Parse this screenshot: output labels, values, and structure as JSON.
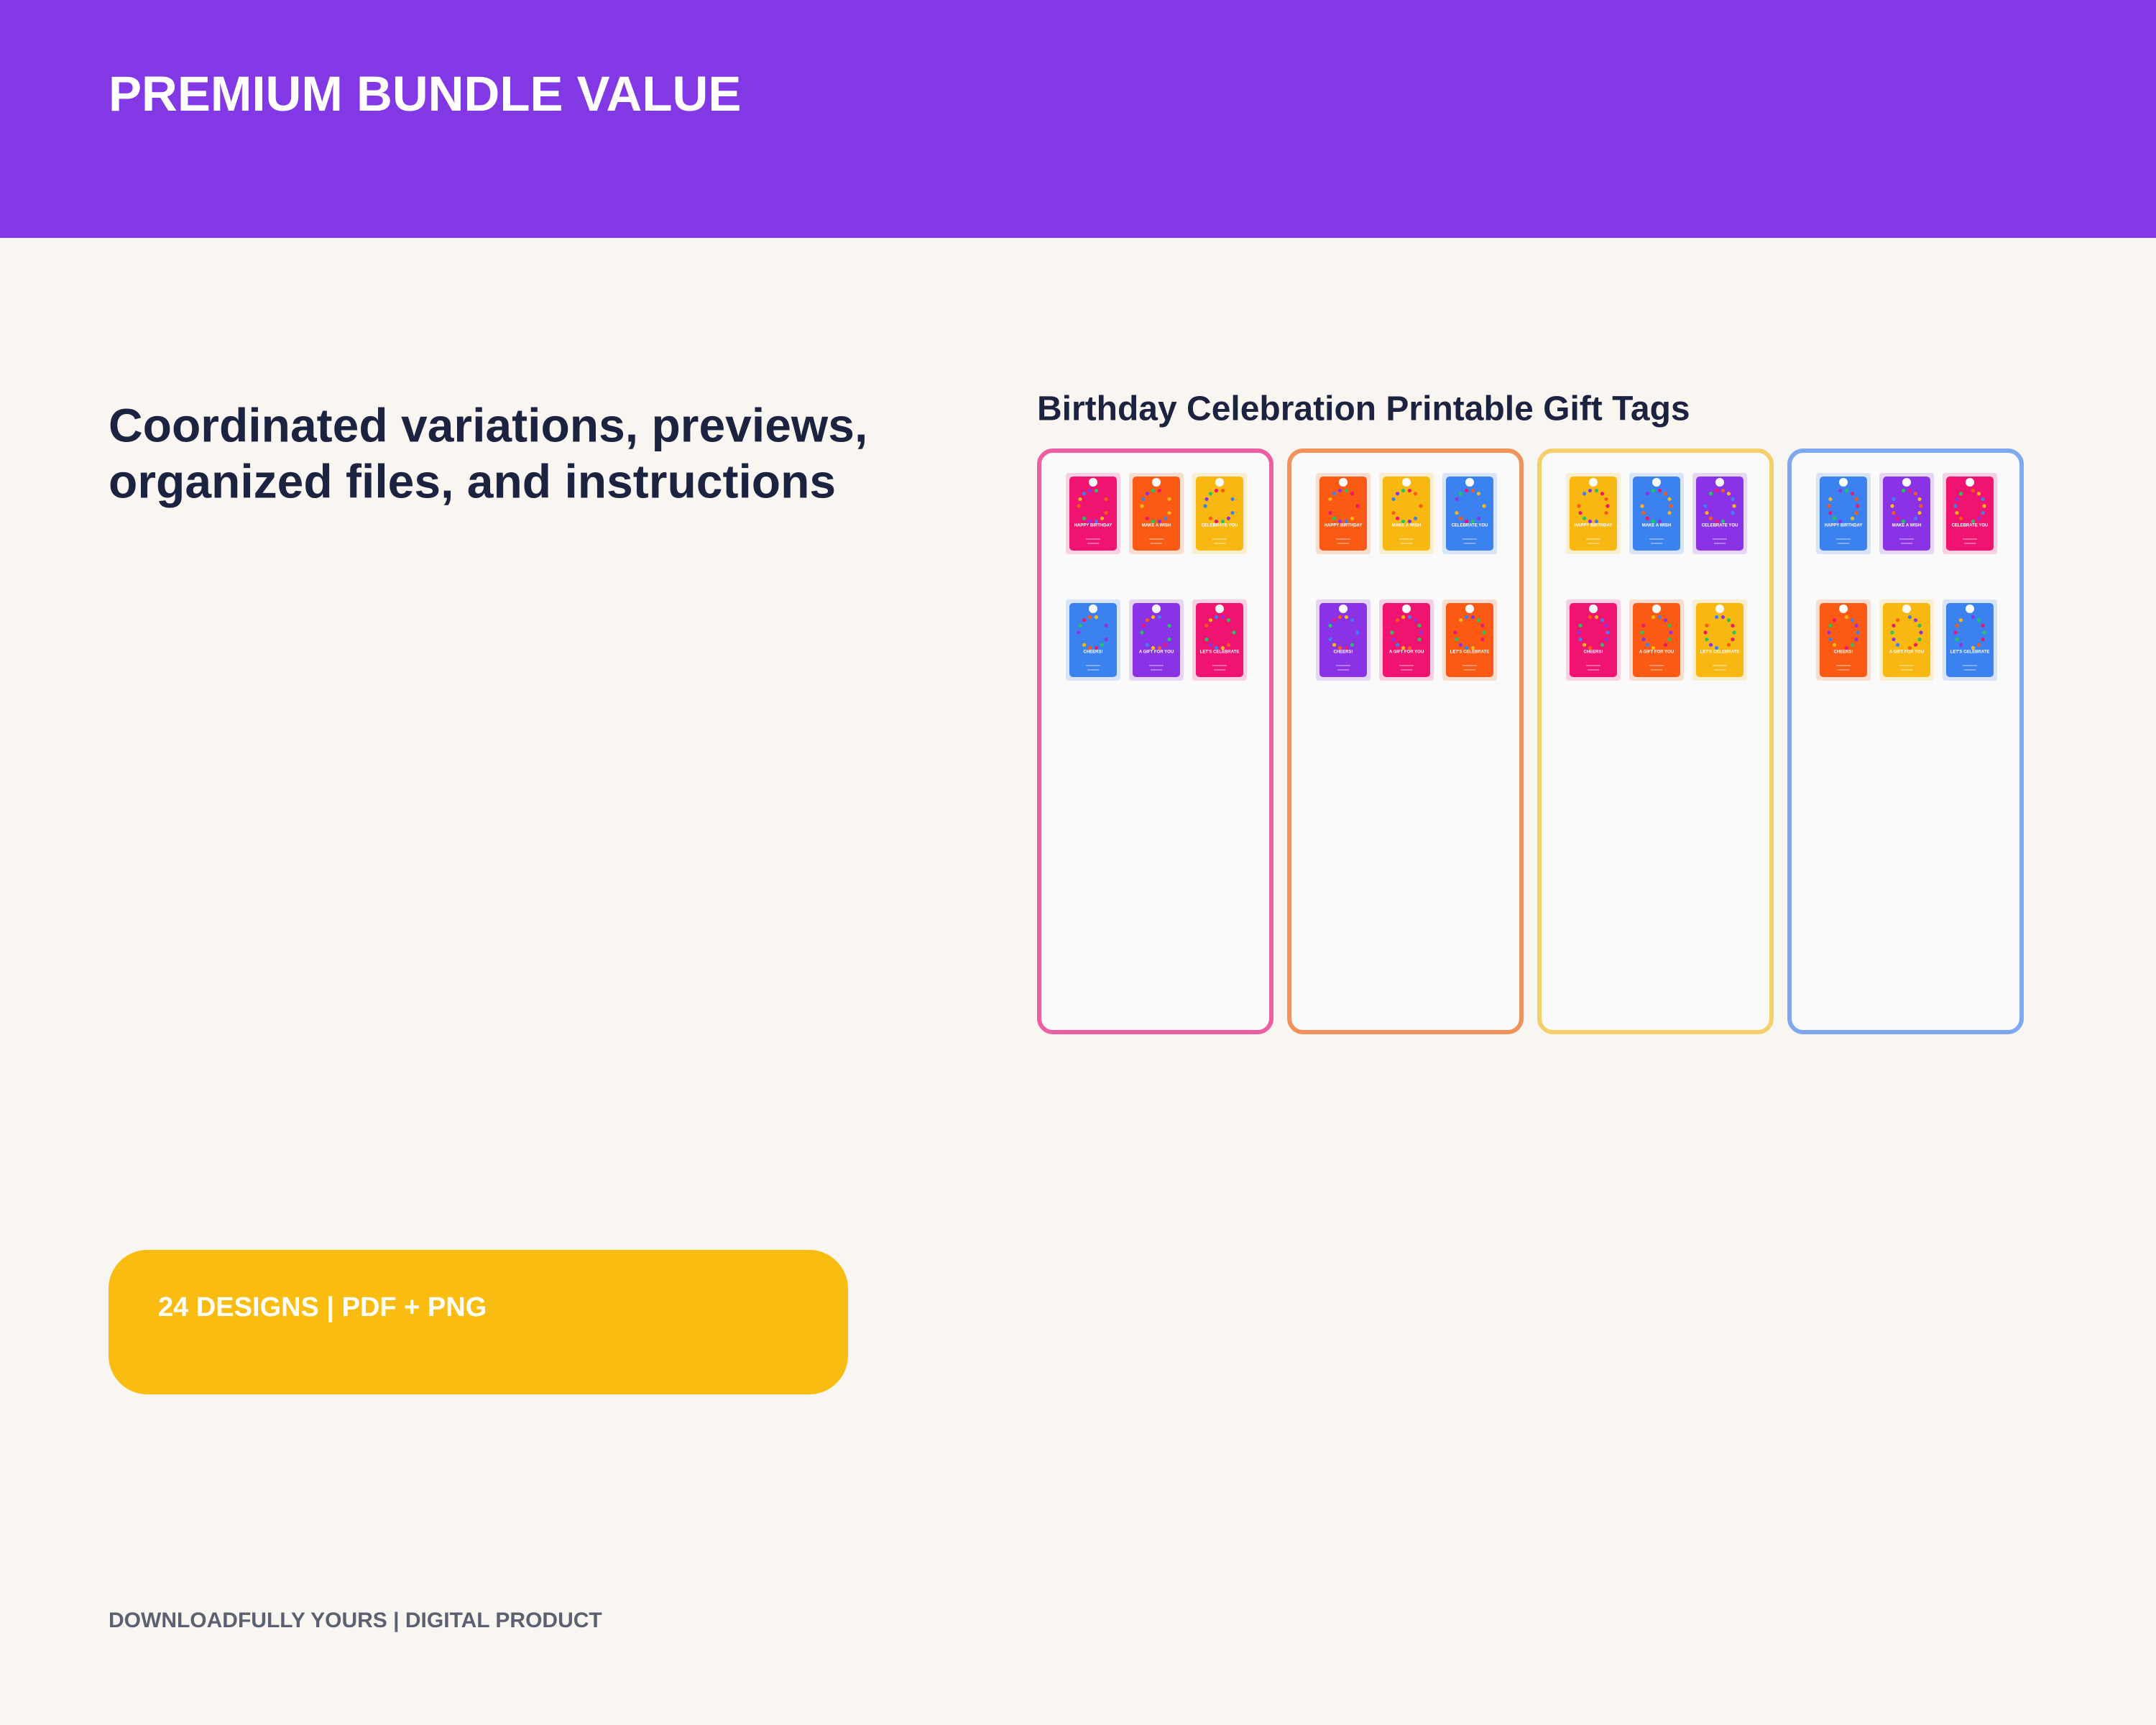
{
  "header": {
    "title": "PREMIUM BUNDLE VALUE"
  },
  "hero": {
    "headline_lines": [
      "Coordinated variations, previews,",
      "organized files, and instructions"
    ]
  },
  "product": {
    "title": "Birthday Celebration Printable Gift Tags",
    "panels": [
      {
        "border_color": "#ec5fa0",
        "tags": [
          {
            "color": "#f0136f",
            "label": "HAPPY BIRTHDAY"
          },
          {
            "color": "#fa5a14",
            "label": "MAKE A WISH"
          },
          {
            "color": "#f9b712",
            "label": "CELEBRATE YOU"
          },
          {
            "color": "#3b82f0",
            "label": "CHEERS!"
          },
          {
            "color": "#8a33e6",
            "label": "A GIFT FOR YOU"
          },
          {
            "color": "#f0136f",
            "label": "LET'S CELEBRATE"
          }
        ]
      },
      {
        "border_color": "#f0925a",
        "tags": [
          {
            "color": "#fa5a14",
            "label": "HAPPY BIRTHDAY"
          },
          {
            "color": "#f9b712",
            "label": "MAKE A WISH"
          },
          {
            "color": "#3b82f0",
            "label": "CELEBRATE YOU"
          },
          {
            "color": "#8a33e6",
            "label": "CHEERS!"
          },
          {
            "color": "#f0136f",
            "label": "A GIFT FOR YOU"
          },
          {
            "color": "#fa5a14",
            "label": "LET'S CELEBRATE"
          }
        ]
      },
      {
        "border_color": "#f5d06a",
        "tags": [
          {
            "color": "#f9b712",
            "label": "HAPPY BIRTHDAY"
          },
          {
            "color": "#3b82f0",
            "label": "MAKE A WISH"
          },
          {
            "color": "#8a33e6",
            "label": "CELEBRATE YOU"
          },
          {
            "color": "#f0136f",
            "label": "CHEERS!"
          },
          {
            "color": "#fa5a14",
            "label": "A GIFT FOR YOU"
          },
          {
            "color": "#f9b712",
            "label": "LET'S CELEBRATE"
          }
        ]
      },
      {
        "border_color": "#7ea8f0",
        "tags": [
          {
            "color": "#3b82f0",
            "label": "HAPPY BIRTHDAY"
          },
          {
            "color": "#8a33e6",
            "label": "MAKE A WISH"
          },
          {
            "color": "#f0136f",
            "label": "CELEBRATE YOU"
          },
          {
            "color": "#fa5a14",
            "label": "CHEERS!"
          },
          {
            "color": "#f9b712",
            "label": "A GIFT FOR YOU"
          },
          {
            "color": "#3b82f0",
            "label": "LET'S CELEBRATE"
          }
        ]
      }
    ]
  },
  "badge": {
    "text": "24 DESIGNS | PDF + PNG"
  },
  "footer": {
    "text": "DOWNLOADFULLY YOURS | DIGITAL PRODUCT"
  }
}
